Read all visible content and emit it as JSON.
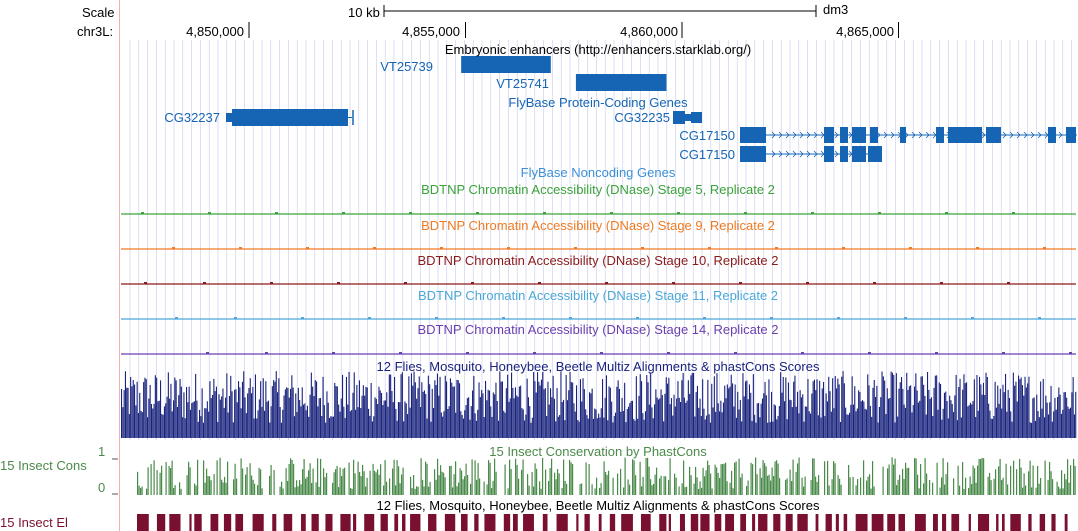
{
  "colors": {
    "gene": "#1565b4",
    "noncoding": "#3a8fd6",
    "stage5": "#3aa33a",
    "stage9": "#f07a20",
    "stage10": "#8b1a1a",
    "stage11": "#4aa8d8",
    "stage14": "#6a3fb0",
    "multiz": "#1a237e",
    "phastcons": "#4a8a4a",
    "elements": "#7a1030",
    "redline": "#f2b0b0",
    "gridline": "#c8c8ee"
  },
  "header": {
    "scale_label": "Scale",
    "scale_value": "10 kb",
    "assembly": "dm3",
    "chrom_label": "chr3L:"
  },
  "ruler_ticks": [
    {
      "pos": 4850000,
      "label": "4,850,000"
    },
    {
      "pos": 4855000,
      "label": "4,855,000"
    },
    {
      "pos": 4860000,
      "label": "4,860,000"
    },
    {
      "pos": 4865000,
      "label": "4,865,000"
    }
  ],
  "tracks": {
    "enhancers": {
      "title": "Embryonic enhancers (http://enhancers.starklab.org/)",
      "items": [
        {
          "name": "VT25739",
          "start": 4854900,
          "end": 4856970
        },
        {
          "name": "VT25741",
          "start": 4857550,
          "end": 4859640
        }
      ]
    },
    "genes": {
      "title": "FlyBase Protein-Coding Genes",
      "items": [
        {
          "name": "CG32237",
          "strand": "-"
        },
        {
          "name": "CG32235",
          "strand": "+"
        },
        {
          "name": "CG17150",
          "strand": "+"
        },
        {
          "name": "CG17150",
          "strand": "+"
        }
      ]
    },
    "noncoding": {
      "title": "FlyBase Noncoding Genes"
    },
    "dnase": [
      {
        "title": "BDTNP Chromatin Accessibility (DNase) Stage 5, Replicate 2",
        "color_key": "stage5"
      },
      {
        "title": "BDTNP Chromatin Accessibility (DNase) Stage 9, Replicate 2",
        "color_key": "stage9"
      },
      {
        "title": "BDTNP Chromatin Accessibility (DNase) Stage 10, Replicate 2",
        "color_key": "stage10"
      },
      {
        "title": "BDTNP Chromatin Accessibility (DNase) Stage 11, Replicate 2",
        "color_key": "stage11"
      },
      {
        "title": "BDTNP Chromatin Accessibility (DNase) Stage 14, Replicate 2",
        "color_key": "stage14"
      }
    ],
    "multiz": {
      "title": "12 Flies, Mosquito, Honeybee, Beetle Multiz Alignments & phastCons Scores"
    },
    "phastcons": {
      "title": "15 Insect Conservation by PhastCons",
      "side_label": "15 Insect Cons",
      "y_max": "1",
      "y_min": "0"
    },
    "elements": {
      "title": "12 Flies, Mosquito, Honeybee, Beetle Multiz Alignments & phastCons Scores",
      "side_label": "15 Insect El"
    }
  }
}
